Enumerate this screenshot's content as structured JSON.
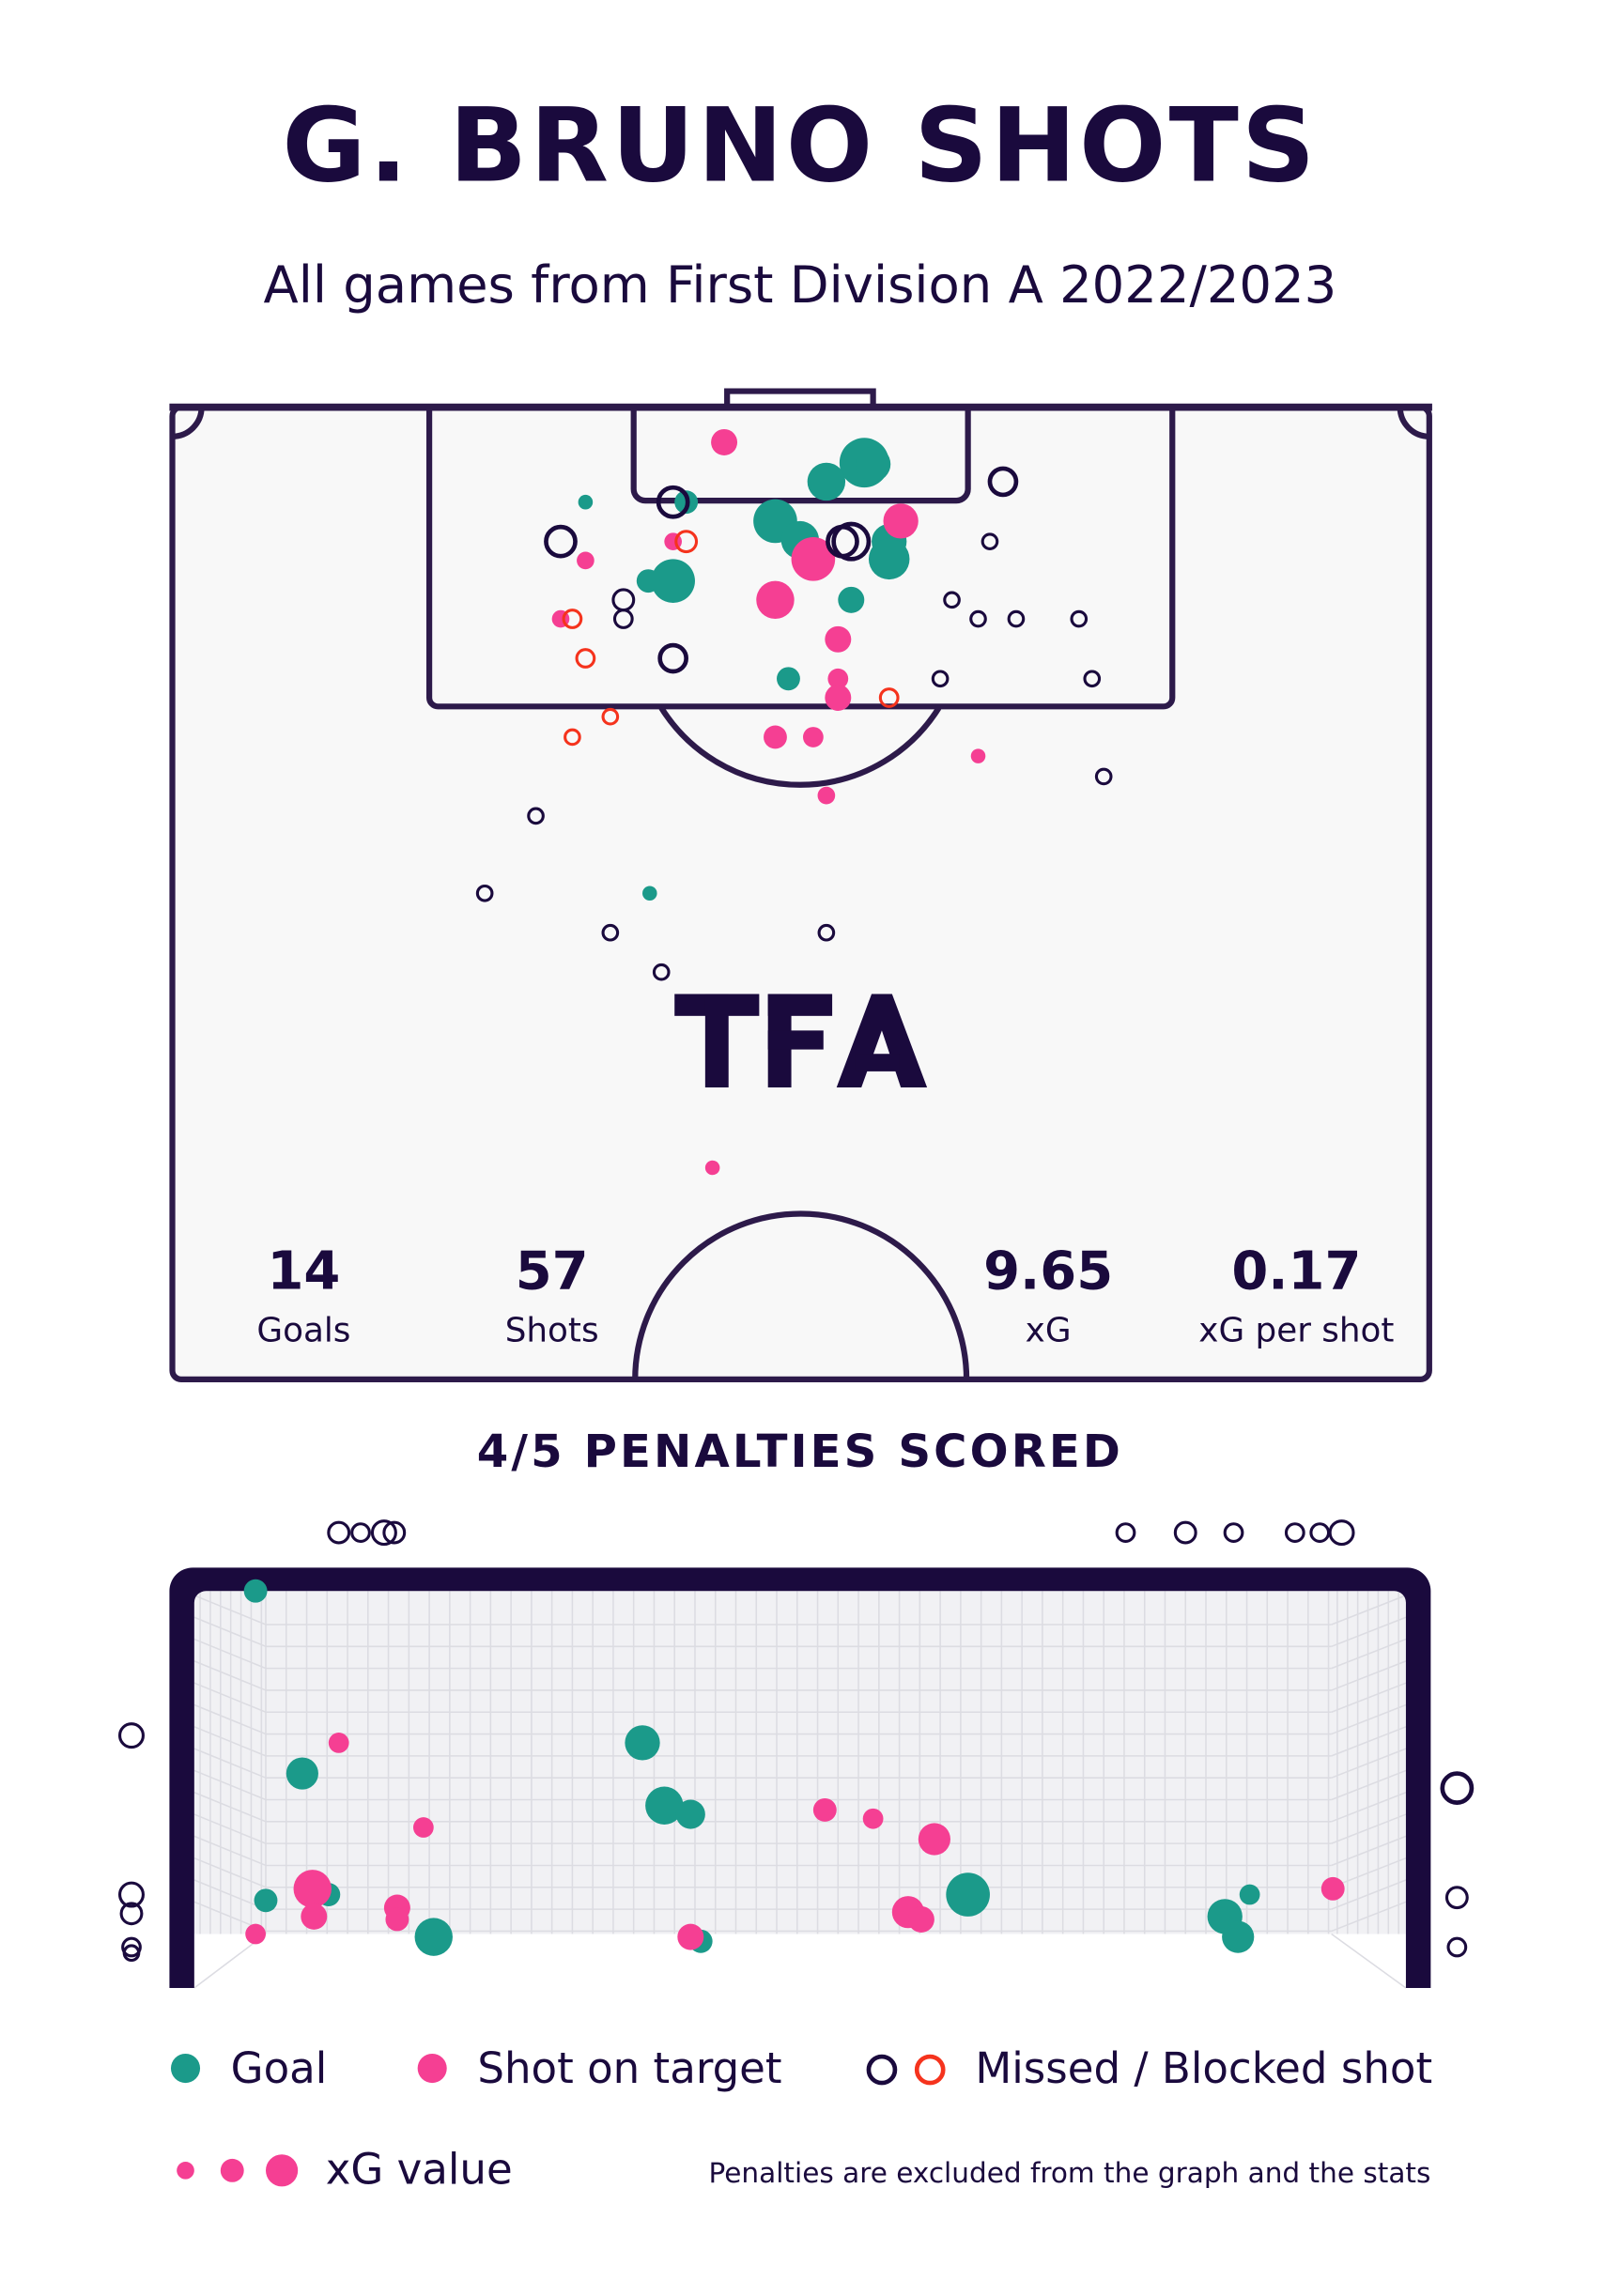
{
  "title": "G. BRUNO SHOTS",
  "subtitle": "All games from First Division A 2022/2023",
  "logo_text": "TFA",
  "colors": {
    "goal": "#1b9a8a",
    "on_target": "#f53f93",
    "missed": "#1a0a3d",
    "blocked": "#f5331d",
    "pitch": "#f8f8f8",
    "lines": "#2d1a4a"
  },
  "stats": [
    {
      "value": "14",
      "label": "Goals"
    },
    {
      "value": "57",
      "label": "Shots"
    },
    {
      "value": "9.65",
      "label": "xG"
    },
    {
      "value": "0.17",
      "label": "xG per shot"
    }
  ],
  "penalties_heading": "4/5 PENALTIES SCORED",
  "legend": {
    "goal": "Goal",
    "on_target": "Shot on target",
    "missed": "Missed / Blocked shot",
    "xg": "xG value"
  },
  "footnote": "Penalties are excluded from the graph and the stats",
  "chart_data": {
    "type": "scatter",
    "title": "G. BRUNO SHOTS",
    "series": [
      {
        "name": "Goal",
        "count": 14
      },
      {
        "name": "Shot on target"
      },
      {
        "name": "Missed / Blocked shot"
      }
    ],
    "totals": {
      "goals": 14,
      "shots": 57,
      "xg": 9.65,
      "xg_per_shot": 0.17
    },
    "penalties": {
      "scored": 4,
      "taken": 5
    }
  }
}
